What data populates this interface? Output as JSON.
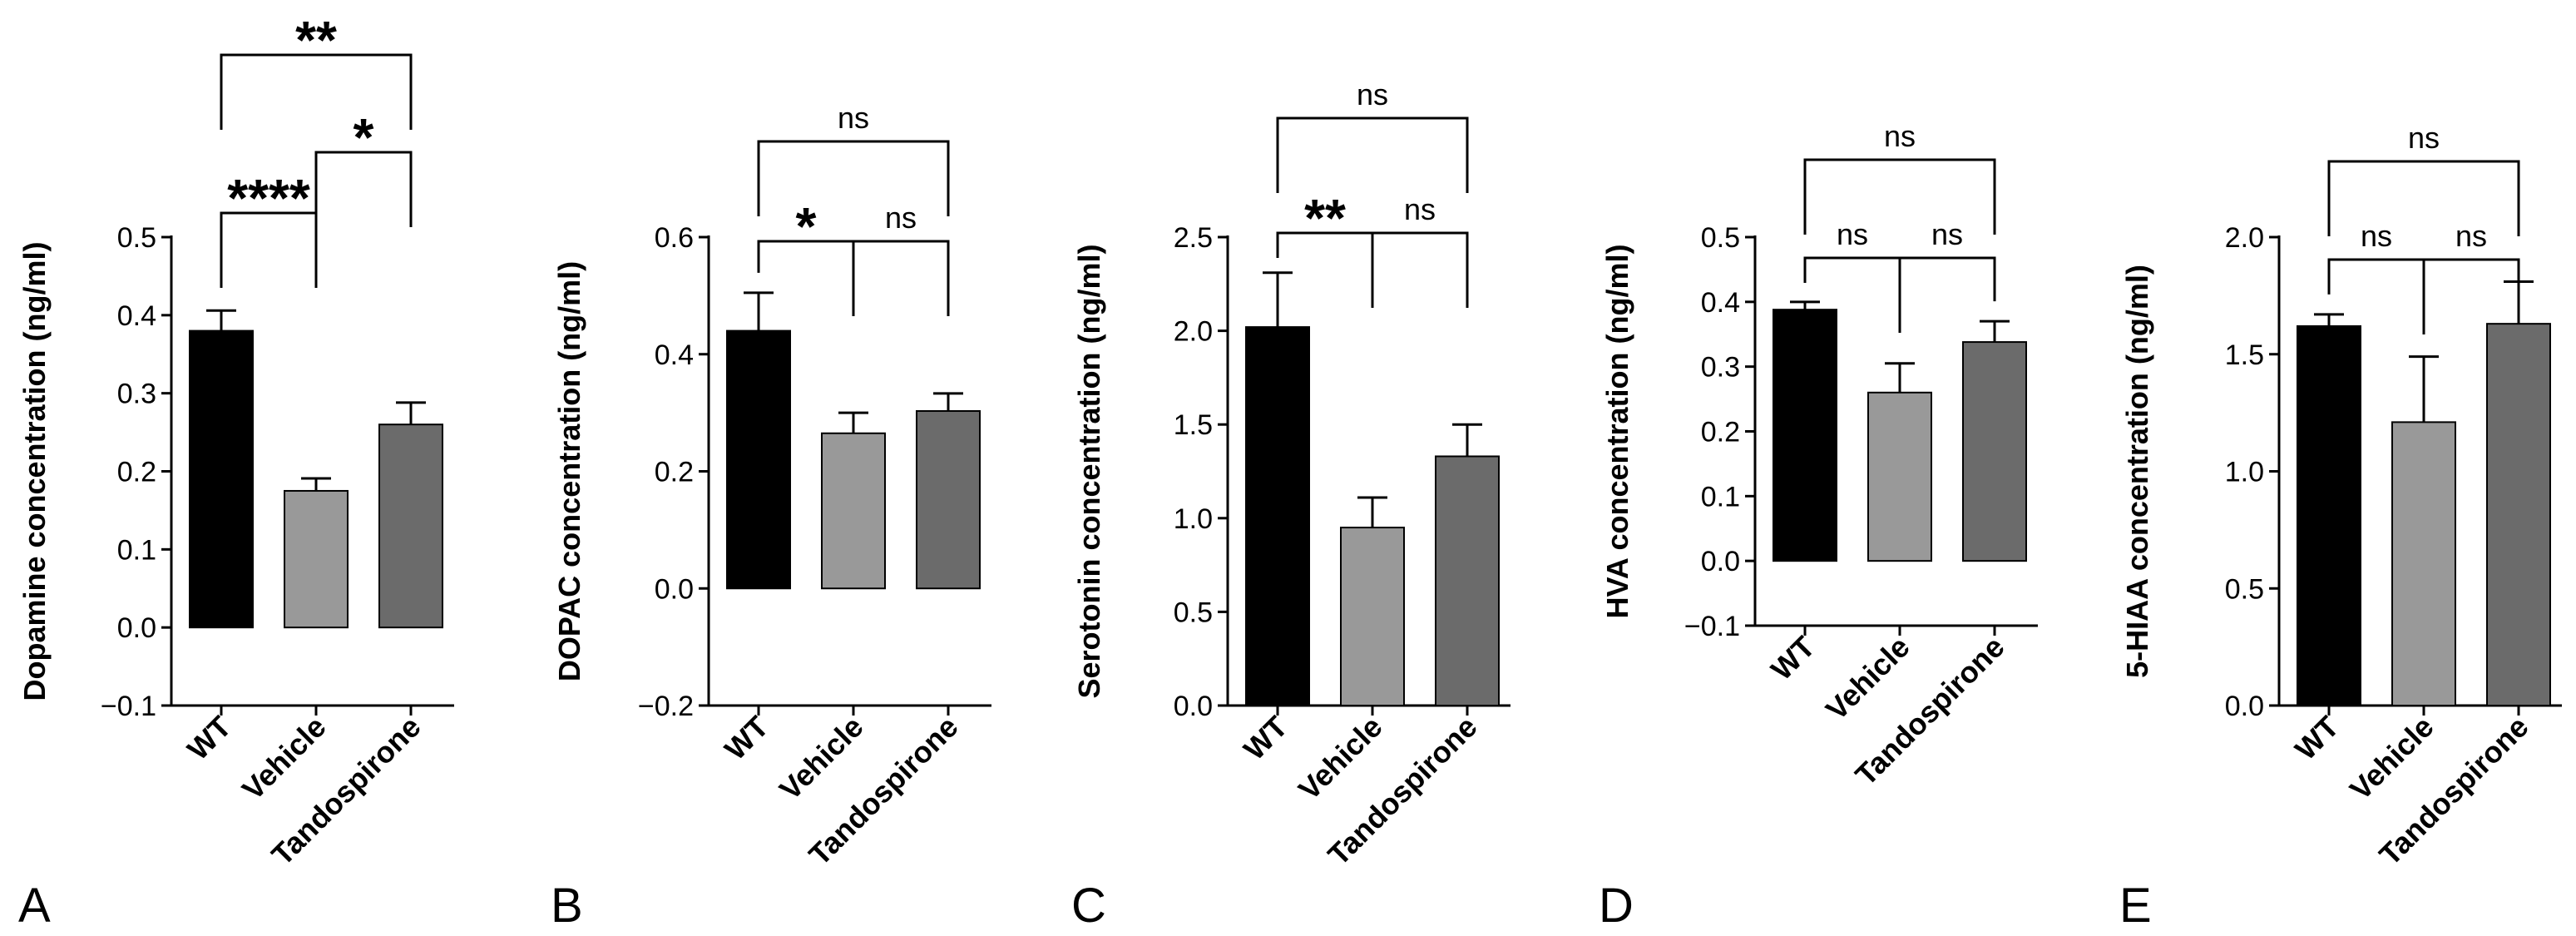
{
  "figure": {
    "panels": [
      "A",
      "B",
      "C",
      "D",
      "E"
    ]
  },
  "style": {
    "bar_colors": [
      "#000000",
      "#999999",
      "#6b6b6b"
    ],
    "axis_color": "#000000"
  },
  "chart_data": [
    {
      "type": "bar",
      "panel": "A",
      "categories": [
        "WT",
        "Vehicle",
        "Tandospirone"
      ],
      "values": [
        0.38,
        0.175,
        0.26
      ],
      "errors": [
        0.026,
        0.016,
        0.028
      ],
      "ylabel": "Dopamine concentration (ng/ml)",
      "ylim": [
        -0.1,
        0.5
      ],
      "yticks": [
        -0.1,
        0.0,
        0.1,
        0.2,
        0.3,
        0.4,
        0.5
      ],
      "ytick_labels": [
        "−0.1",
        "0.0",
        "0.1",
        "0.2",
        "0.3",
        "0.4",
        "0.5"
      ],
      "comparisons": [
        {
          "from": 0,
          "to": 1,
          "label": "****",
          "level": 0
        },
        {
          "from": 1,
          "to": 2,
          "label": "*",
          "level": 1
        },
        {
          "from": 0,
          "to": 2,
          "label": "**",
          "level": 2
        }
      ]
    },
    {
      "type": "bar",
      "panel": "B",
      "categories": [
        "WT",
        "Vehicle",
        "Tandospirone"
      ],
      "values": [
        0.44,
        0.265,
        0.303
      ],
      "errors": [
        0.065,
        0.035,
        0.03
      ],
      "ylabel": "DOPAC concentration (ng/ml)",
      "ylim": [
        -0.2,
        0.6
      ],
      "yticks": [
        -0.2,
        0.0,
        0.2,
        0.4,
        0.6
      ],
      "ytick_labels": [
        "−0.2",
        "0.0",
        "0.2",
        "0.4",
        "0.6"
      ],
      "comparisons": [
        {
          "from": 0,
          "to": 1,
          "label": "*",
          "level": 0
        },
        {
          "from": 1,
          "to": 2,
          "label": "ns",
          "level": 0
        },
        {
          "from": 0,
          "to": 2,
          "label": "ns",
          "level": 1
        }
      ]
    },
    {
      "type": "bar",
      "panel": "C",
      "categories": [
        "WT",
        "Vehicle",
        "Tandospirone"
      ],
      "values": [
        2.02,
        0.95,
        1.33
      ],
      "errors": [
        0.29,
        0.16,
        0.17
      ],
      "ylabel": "Serotonin concentration (ng/ml)",
      "ylim": [
        0.0,
        2.5
      ],
      "yticks": [
        0.0,
        0.5,
        1.0,
        1.5,
        2.0,
        2.5
      ],
      "ytick_labels": [
        "0.0",
        "0.5",
        "1.0",
        "1.5",
        "2.0",
        "2.5"
      ],
      "comparisons": [
        {
          "from": 0,
          "to": 1,
          "label": "**",
          "level": 0
        },
        {
          "from": 1,
          "to": 2,
          "label": "ns",
          "level": 0
        },
        {
          "from": 0,
          "to": 2,
          "label": "ns",
          "level": 1
        }
      ]
    },
    {
      "type": "bar",
      "panel": "D",
      "categories": [
        "WT",
        "Vehicle",
        "Tandospirone"
      ],
      "values": [
        0.388,
        0.26,
        0.338
      ],
      "errors": [
        0.012,
        0.045,
        0.032
      ],
      "ylabel": "HVA concentration (ng/ml)",
      "ylim": [
        -0.1,
        0.5
      ],
      "yticks": [
        -0.1,
        0.0,
        0.1,
        0.2,
        0.3,
        0.4,
        0.5
      ],
      "ytick_labels": [
        "−0.1",
        "0.0",
        "0.1",
        "0.2",
        "0.3",
        "0.4",
        "0.5"
      ],
      "comparisons": [
        {
          "from": 0,
          "to": 1,
          "label": "ns",
          "level": 0
        },
        {
          "from": 1,
          "to": 2,
          "label": "ns",
          "level": 0
        },
        {
          "from": 0,
          "to": 2,
          "label": "ns",
          "level": 1
        }
      ]
    },
    {
      "type": "bar",
      "panel": "E",
      "categories": [
        "WT",
        "Vehicle",
        "Tandospirone"
      ],
      "values": [
        1.62,
        1.21,
        1.63
      ],
      "errors": [
        0.05,
        0.28,
        0.18
      ],
      "ylabel": "5-HIAA concentration (ng/ml)",
      "ylim": [
        0.0,
        2.0
      ],
      "yticks": [
        0.0,
        0.5,
        1.0,
        1.5,
        2.0
      ],
      "ytick_labels": [
        "0.0",
        "0.5",
        "1.0",
        "1.5",
        "2.0"
      ],
      "comparisons": [
        {
          "from": 0,
          "to": 1,
          "label": "ns",
          "level": 0
        },
        {
          "from": 1,
          "to": 2,
          "label": "ns",
          "level": 0
        },
        {
          "from": 0,
          "to": 2,
          "label": "ns",
          "level": 1
        }
      ]
    }
  ]
}
